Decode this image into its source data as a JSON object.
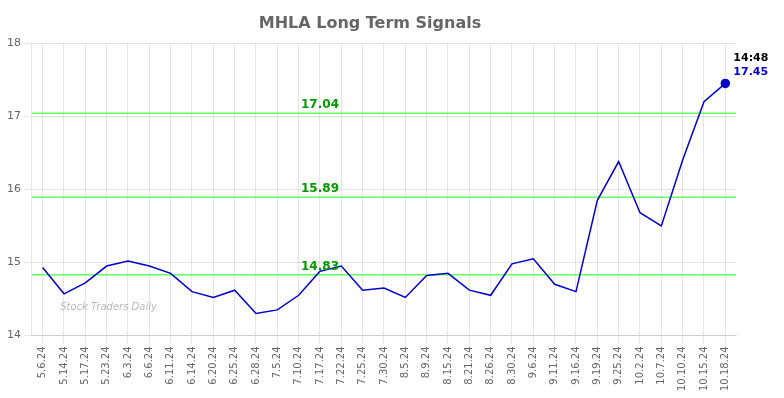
{
  "chart_data": {
    "type": "line",
    "title": "MHLA Long Term Signals",
    "categories": [
      "5.6.24",
      "5.14.24",
      "5.17.24",
      "5.23.24",
      "6.3.24",
      "6.6.24",
      "6.11.24",
      "6.14.24",
      "6.20.24",
      "6.25.24",
      "6.28.24",
      "7.5.24",
      "7.10.24",
      "7.17.24",
      "7.22.24",
      "7.25.24",
      "7.30.24",
      "8.5.24",
      "8.9.24",
      "8.15.24",
      "8.21.24",
      "8.26.24",
      "8.30.24",
      "9.6.24",
      "9.11.24",
      "9.16.24",
      "9.19.24",
      "9.25.24",
      "10.2.24",
      "10.7.24",
      "10.10.24",
      "10.15.24",
      "10.18.24"
    ],
    "values": [
      14.93,
      14.57,
      14.72,
      14.95,
      15.02,
      14.95,
      14.85,
      14.6,
      14.52,
      14.62,
      14.3,
      14.35,
      14.55,
      14.88,
      14.95,
      14.62,
      14.65,
      14.52,
      14.82,
      14.85,
      14.62,
      14.55,
      14.98,
      15.05,
      14.7,
      14.6,
      15.85,
      16.38,
      15.68,
      15.5,
      16.4,
      17.2,
      17.45
    ],
    "color": "#0000cc",
    "ylim": [
      14.0,
      18.0
    ],
    "yticks": [
      14,
      15,
      16,
      17,
      18
    ],
    "grid": true,
    "hlines": [
      {
        "value": 14.83,
        "label": "14.83",
        "x": "7.17.24",
        "color": "#66ff66",
        "label_color": "#009900"
      },
      {
        "value": 15.89,
        "label": "15.89",
        "x": "7.17.24",
        "color": "#66ff66",
        "label_color": "#009900"
      },
      {
        "value": 17.04,
        "label": "17.04",
        "x": "7.17.24",
        "color": "#66ff66",
        "label_color": "#009900"
      }
    ],
    "annotations": [
      {
        "text": "14:48",
        "x": "10.18.24",
        "y": 17.45,
        "color": "#000000"
      },
      {
        "text": "17.45",
        "x": "10.18.24",
        "y": 17.45,
        "color": "#0000cc",
        "marker": "circle"
      }
    ],
    "watermark": "Stock Traders Daily"
  }
}
